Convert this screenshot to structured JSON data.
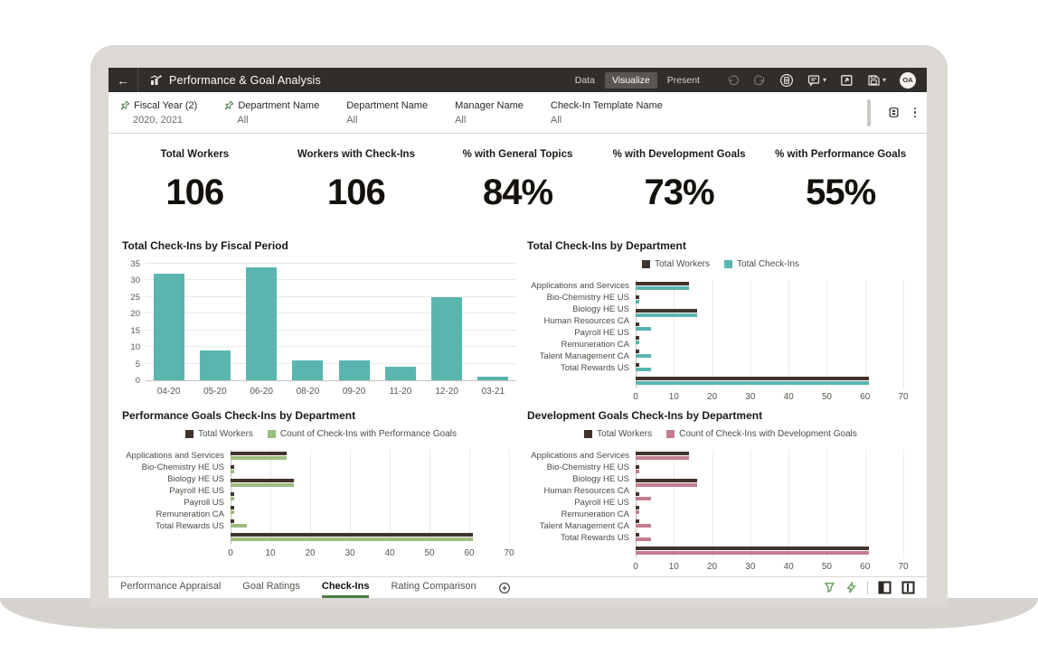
{
  "app": {
    "background": "#ffffff",
    "bezel_color": "#dcd9d4",
    "header_bg": "#312d2a",
    "accent_green": "#4c7c42"
  },
  "header": {
    "back_label": "←",
    "title": "Performance & Goal Analysis",
    "tabs": [
      {
        "label": "Data",
        "active": false
      },
      {
        "label": "Visualize",
        "active": true
      },
      {
        "label": "Present",
        "active": false
      }
    ],
    "icons": [
      "undo-icon",
      "redo-icon",
      "assistant-icon",
      "comments-icon",
      "open-in-window-icon",
      "save-icon"
    ],
    "avatar_initials": "OA"
  },
  "filter_bar": {
    "filters": [
      {
        "name": "Fiscal Year (2)",
        "value": "2020, 2021",
        "pinned": true
      },
      {
        "name": "Department Name",
        "value": "All",
        "pinned": true
      },
      {
        "name": "Department Name",
        "value": "All",
        "pinned": false
      },
      {
        "name": "Manager Name",
        "value": "All",
        "pinned": false
      },
      {
        "name": "Check-In Template Name",
        "value": "All",
        "pinned": false
      }
    ],
    "icons": [
      "filter-bar-menu-icon",
      "more-options-icon"
    ]
  },
  "kpis": [
    {
      "label": "Total Workers",
      "value": "106"
    },
    {
      "label": "Workers with Check-Ins",
      "value": "106"
    },
    {
      "label": "% with General Topics",
      "value": "84%"
    },
    {
      "label": "% with Development Goals",
      "value": "73%"
    },
    {
      "label": "% with Performance Goals",
      "value": "55%"
    }
  ],
  "chart_data": [
    {
      "type": "bar",
      "title": "Total Check-Ins by Fiscal Period",
      "categories": [
        "04-20",
        "05-20",
        "06-20",
        "08-20",
        "09-20",
        "11-20",
        "12-20",
        "03-21"
      ],
      "values": [
        32,
        9,
        34,
        6,
        6,
        4,
        25,
        1
      ],
      "ylim": [
        0,
        35
      ],
      "yticks": [
        0,
        5,
        10,
        15,
        20,
        25,
        30,
        35
      ],
      "bar_color": "#5ab5af",
      "grid": true,
      "legend": "none"
    },
    {
      "type": "bar-horizontal",
      "title": "Total Check-Ins by Department",
      "categories": [
        "Applications and Services",
        "Bio-Chemistry HE US",
        "Biology HE US",
        "Human Resources CA",
        "Payroll HE US",
        "Remuneration CA",
        "Talent Management CA",
        "Total Rewards US"
      ],
      "series": [
        {
          "name": "Total Workers",
          "color": "#42332b",
          "values": [
            14,
            1,
            16,
            1,
            1,
            1,
            1,
            61
          ]
        },
        {
          "name": "Total Check-Ins",
          "color": "#5ab5af",
          "values": [
            14,
            1,
            16,
            4,
            1,
            4,
            4,
            61
          ]
        }
      ],
      "xlim": [
        0,
        70
      ],
      "xticks": [
        0,
        10,
        20,
        30,
        40,
        50,
        60,
        70
      ],
      "legend": "top",
      "grid": true
    },
    {
      "type": "bar-horizontal",
      "title": "Performance Goals Check-Ins by Department",
      "categories": [
        "Applications and Services",
        "Bio-Chemistry HE US",
        "Biology HE US",
        "Payroll HE US",
        "Payroll US",
        "Remuneration CA",
        "Total Rewards US"
      ],
      "series": [
        {
          "name": "Total Workers",
          "color": "#42332b",
          "values": [
            14,
            1,
            16,
            1,
            1,
            1,
            61
          ]
        },
        {
          "name": "Count of Check-Ins with Performance Goals",
          "color": "#9cbd80",
          "values": [
            14,
            1,
            16,
            1,
            1,
            4,
            61
          ]
        }
      ],
      "xlim": [
        0,
        70
      ],
      "xticks": [
        0,
        10,
        20,
        30,
        40,
        50,
        60,
        70
      ],
      "legend": "top",
      "grid": true
    },
    {
      "type": "bar-horizontal",
      "title": "Development Goals Check-Ins by Department",
      "categories": [
        "Applications and Services",
        "Bio-Chemistry HE US",
        "Biology HE US",
        "Human Resources CA",
        "Payroll HE US",
        "Remuneration CA",
        "Talent Management CA",
        "Total Rewards US"
      ],
      "series": [
        {
          "name": "Total Workers",
          "color": "#42332b",
          "values": [
            14,
            1,
            16,
            1,
            1,
            1,
            1,
            61
          ]
        },
        {
          "name": "Count of Check-Ins with Development Goals",
          "color": "#c47e8f",
          "values": [
            14,
            1,
            16,
            4,
            1,
            4,
            4,
            61
          ]
        }
      ],
      "xlim": [
        0,
        70
      ],
      "xticks": [
        0,
        10,
        20,
        30,
        40,
        50,
        60,
        70
      ],
      "legend": "top",
      "grid": true
    }
  ],
  "canvas_tabs": {
    "tabs": [
      {
        "label": "Performance Appraisal",
        "active": false
      },
      {
        "label": "Goal Ratings",
        "active": false
      },
      {
        "label": "Check-Ins",
        "active": true
      },
      {
        "label": "Rating Comparison",
        "active": false
      }
    ],
    "right_icons": [
      "brushing-icon",
      "auto-insights-icon",
      "layout-left-panel-icon",
      "layout-split-icon"
    ]
  }
}
